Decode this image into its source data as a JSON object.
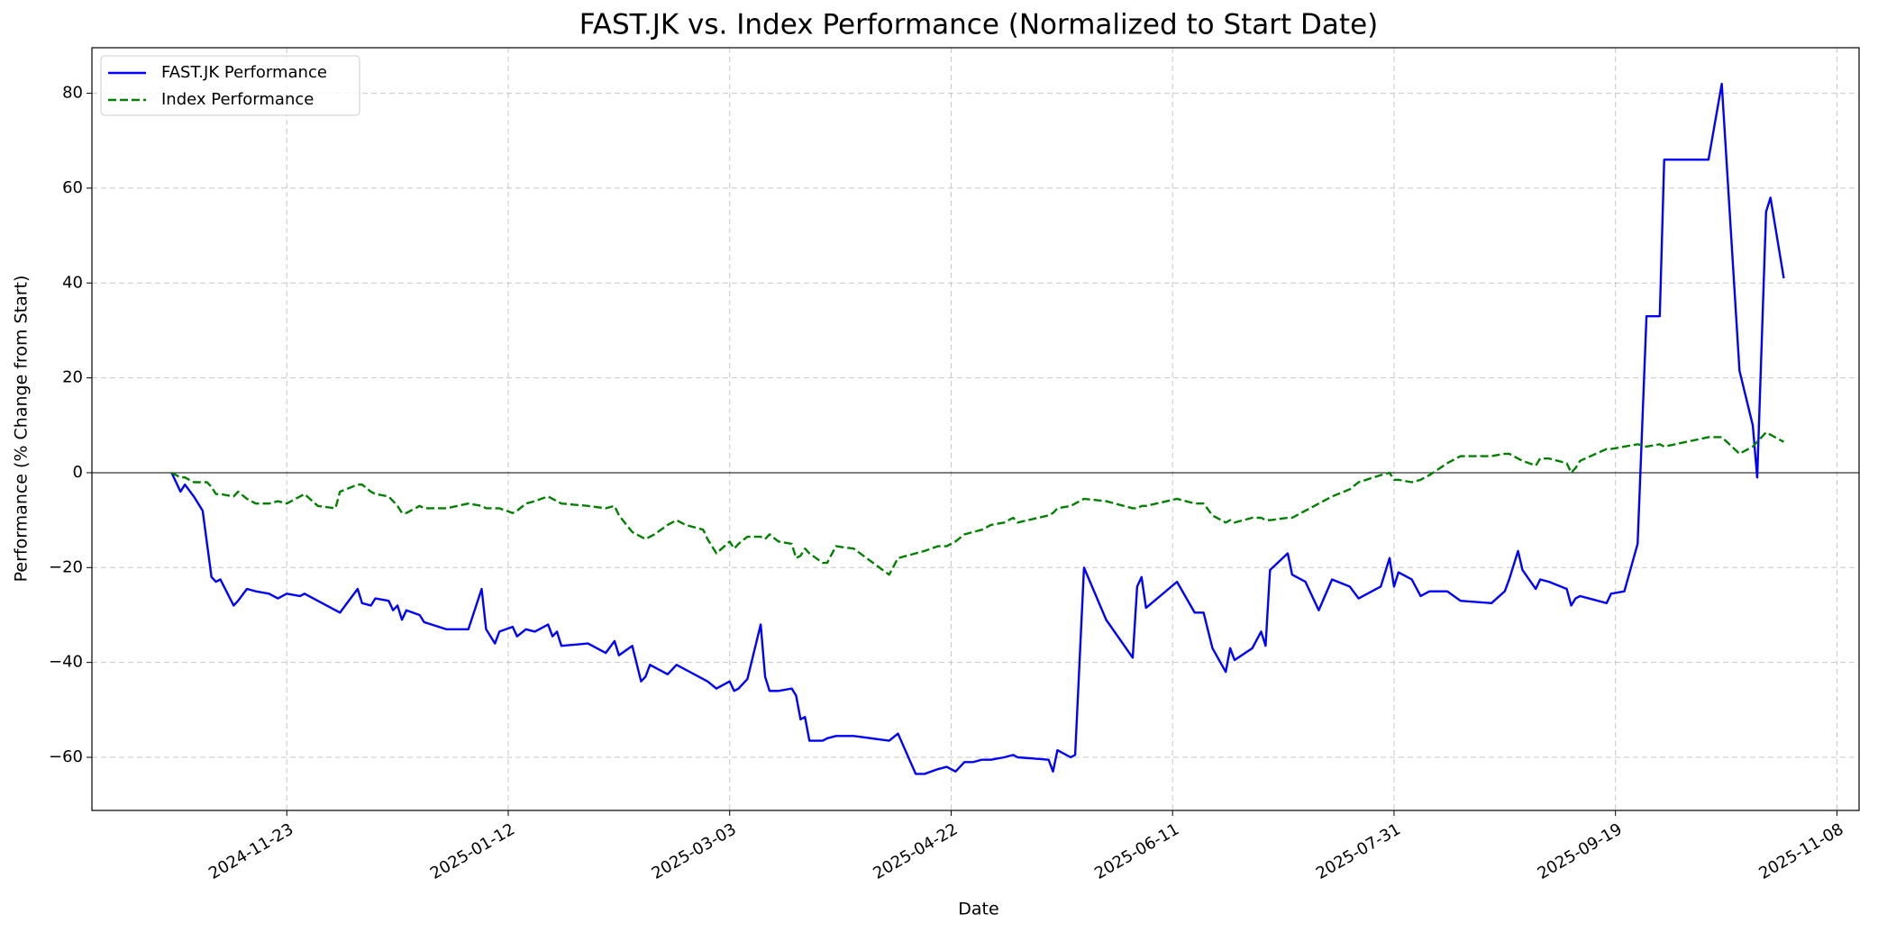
{
  "chart_data": {
    "type": "line",
    "title": "FAST.JK vs. Index Performance (Normalized to Start Date)",
    "x_label": "Date",
    "y_label": "Performance (% Change from Start)",
    "x": [
      "2024-10-28",
      "2024-10-30",
      "2024-10-31",
      "2024-11-02",
      "2024-11-04",
      "2024-11-05",
      "2024-11-06",
      "2024-11-07",
      "2024-11-08",
      "2024-11-11",
      "2024-11-12",
      "2024-11-14",
      "2024-11-16",
      "2024-11-19",
      "2024-11-21",
      "2024-11-23",
      "2024-11-26",
      "2024-11-27",
      "2024-11-30",
      "2024-12-04",
      "2024-12-05",
      "2024-12-09",
      "2024-12-10",
      "2024-12-12",
      "2024-12-13",
      "2024-12-16",
      "2024-12-17",
      "2024-12-18",
      "2024-12-19",
      "2024-12-20",
      "2024-12-23",
      "2024-12-24",
      "2024-12-29",
      "2025-01-03",
      "2025-01-06",
      "2025-01-07",
      "2025-01-09",
      "2025-01-10",
      "2025-01-13",
      "2025-01-14",
      "2025-01-16",
      "2025-01-18",
      "2025-01-21",
      "2025-01-22",
      "2025-01-23",
      "2025-01-24",
      "2025-01-30",
      "2025-02-03",
      "2025-02-05",
      "2025-02-06",
      "2025-02-09",
      "2025-02-11",
      "2025-02-12",
      "2025-02-13",
      "2025-02-14",
      "2025-02-17",
      "2025-02-19",
      "2025-02-21",
      "2025-02-25",
      "2025-02-26",
      "2025-02-28",
      "2025-03-03",
      "2025-03-04",
      "2025-03-05",
      "2025-03-07",
      "2025-03-10",
      "2025-03-11",
      "2025-03-12",
      "2025-03-14",
      "2025-03-17",
      "2025-03-18",
      "2025-03-19",
      "2025-03-20",
      "2025-03-21",
      "2025-03-24",
      "2025-03-25",
      "2025-03-27",
      "2025-03-31",
      "2025-04-08",
      "2025-04-10",
      "2025-04-14",
      "2025-04-16",
      "2025-04-19",
      "2025-04-21",
      "2025-04-23",
      "2025-04-25",
      "2025-04-27",
      "2025-04-29",
      "2025-05-01",
      "2025-05-04",
      "2025-05-06",
      "2025-05-07",
      "2025-05-14",
      "2025-05-15",
      "2025-05-16",
      "2025-05-19",
      "2025-05-20",
      "2025-05-22",
      "2025-05-27",
      "2025-06-02",
      "2025-06-03",
      "2025-06-04",
      "2025-06-05",
      "2025-06-12",
      "2025-06-16",
      "2025-06-18",
      "2025-06-20",
      "2025-06-23",
      "2025-06-24",
      "2025-06-25",
      "2025-06-29",
      "2025-07-01",
      "2025-07-02",
      "2025-07-03",
      "2025-07-07",
      "2025-07-08",
      "2025-07-11",
      "2025-07-14",
      "2025-07-17",
      "2025-07-21",
      "2025-07-23",
      "2025-07-28",
      "2025-07-30",
      "2025-07-31",
      "2025-08-01",
      "2025-08-04",
      "2025-08-06",
      "2025-08-08",
      "2025-08-12",
      "2025-08-15",
      "2025-08-22",
      "2025-08-25",
      "2025-08-26",
      "2025-08-28",
      "2025-08-29",
      "2025-09-01",
      "2025-09-02",
      "2025-09-04",
      "2025-09-08",
      "2025-09-09",
      "2025-09-10",
      "2025-09-11",
      "2025-09-17",
      "2025-09-18",
      "2025-09-21",
      "2025-09-24",
      "2025-09-26",
      "2025-09-29",
      "2025-09-30",
      "2025-10-10",
      "2025-10-13",
      "2025-10-17",
      "2025-10-20",
      "2025-10-21",
      "2025-10-23",
      "2025-10-24",
      "2025-10-27"
    ],
    "series": [
      {
        "name": "FAST.JK Performance",
        "color": "#0000ff",
        "style": "solid",
        "values": [
          0,
          -4,
          -2.5,
          -5,
          -8,
          -15,
          -22,
          -23,
          -22.5,
          -28,
          -27,
          -24.5,
          -25,
          -25.5,
          -26.5,
          -25.5,
          -26,
          -25.5,
          -27,
          -29,
          -29.5,
          -24.5,
          -27.5,
          -28,
          -26.5,
          -27,
          -29,
          -28,
          -31,
          -29,
          -30,
          -31.5,
          -33,
          -33,
          -24.5,
          -33,
          -36,
          -33.5,
          -32.5,
          -34.5,
          -33,
          -33.5,
          -32,
          -34.5,
          -33.5,
          -36.5,
          -36,
          -38,
          -35.5,
          -38.5,
          -36.5,
          -44,
          -43,
          -40.5,
          -41,
          -42.5,
          -40.5,
          -41.5,
          -43.5,
          -44,
          -45.5,
          -44,
          -46,
          -45.5,
          -43.5,
          -32,
          -43,
          -46,
          -46,
          -45.5,
          -47,
          -52,
          -51.5,
          -56.5,
          -56.5,
          -56,
          -55.5,
          -55.5,
          -56.5,
          -55,
          -63.5,
          -63.5,
          -62.5,
          -62,
          -63,
          -61,
          -61,
          -60.5,
          -60.5,
          -60,
          -59.5,
          -60,
          -60.5,
          -63,
          -58.5,
          -60,
          -59.5,
          -20,
          -31,
          -39,
          -24,
          -22,
          -28.5,
          -23,
          -29.5,
          -29.5,
          -37,
          -42,
          -37,
          -39.5,
          -37,
          -33.5,
          -36.5,
          -20.5,
          -17,
          -21.5,
          -23,
          -29,
          -22.5,
          -24,
          -26.5,
          -24,
          -18,
          -24,
          -21,
          -22.5,
          -26,
          -25,
          -25,
          -27,
          -27.5,
          -25,
          -22.5,
          -16.5,
          -20.5,
          -24.5,
          -22.5,
          -23,
          -24.5,
          -28,
          -26.5,
          -26,
          -27.5,
          -25.5,
          -25,
          -15,
          33,
          33,
          66,
          66,
          82,
          21.5,
          10,
          -1,
          55,
          58,
          41
        ]
      },
      {
        "name": "Index Performance",
        "color": "#008000",
        "style": "dashed",
        "values": [
          0,
          -1,
          -1,
          -2,
          -2,
          -2,
          -3,
          -4.5,
          -4.5,
          -5,
          -4,
          -5.5,
          -6.5,
          -6.5,
          -6,
          -6.5,
          -5,
          -4.5,
          -7,
          -7.5,
          -4,
          -2.5,
          -2.5,
          -4,
          -4.5,
          -5,
          -6,
          -7,
          -8.5,
          -8.5,
          -7,
          -7.5,
          -7.5,
          -6.5,
          -7,
          -7.5,
          -7.5,
          -7.5,
          -8.5,
          -8,
          -6.5,
          -6,
          -5,
          -5.5,
          -6,
          -6.5,
          -7,
          -7.5,
          -7,
          -9,
          -12.5,
          -13.5,
          -14,
          -13.5,
          -13,
          -11,
          -10,
          -11,
          -12,
          -14,
          -17,
          -14.5,
          -16,
          -15,
          -13.5,
          -13.5,
          -14,
          -13,
          -14.5,
          -15,
          -18,
          -17.5,
          -16,
          -17,
          -19,
          -19,
          -15.5,
          -16,
          -21.5,
          -18,
          -17,
          -16.5,
          -15.5,
          -15.5,
          -14.5,
          -13,
          -12.5,
          -12,
          -11,
          -10.5,
          -9.5,
          -10.5,
          -9,
          -8.5,
          -7.5,
          -7,
          -6.5,
          -5.5,
          -6,
          -7.5,
          -7.5,
          -7,
          -7,
          -5.5,
          -6.5,
          -6.5,
          -9,
          -10.5,
          -10,
          -10.5,
          -9.5,
          -9.5,
          -10,
          -10,
          -9.5,
          -9.5,
          -8,
          -6.5,
          -5,
          -3.5,
          -2,
          -0.5,
          0,
          -1.5,
          -1.5,
          -2,
          -1.5,
          -0.5,
          2,
          3.5,
          3.5,
          4,
          4,
          3,
          2.5,
          1.5,
          3,
          3,
          2,
          0,
          1,
          2.5,
          5,
          5,
          5.5,
          6,
          5.5,
          6,
          5.5,
          7.5,
          7.5,
          4,
          5.5,
          6.5,
          8.5,
          8,
          6.5
        ]
      }
    ],
    "xlim": [
      "2024-10-10",
      "2025-11-13"
    ],
    "xticks": [
      "2024-11-23",
      "2025-01-12",
      "2025-03-03",
      "2025-04-22",
      "2025-06-11",
      "2025-07-31",
      "2025-09-19",
      "2025-11-08"
    ],
    "ylim": [
      -71.2,
      89.6
    ],
    "yticks": [
      {
        "value": -60,
        "label": "−60"
      },
      {
        "value": -40,
        "label": "−40"
      },
      {
        "value": -20,
        "label": "−20"
      },
      0,
      20,
      40,
      60,
      80
    ],
    "zero_line": 0,
    "grid": true,
    "legend": "upper-left"
  }
}
